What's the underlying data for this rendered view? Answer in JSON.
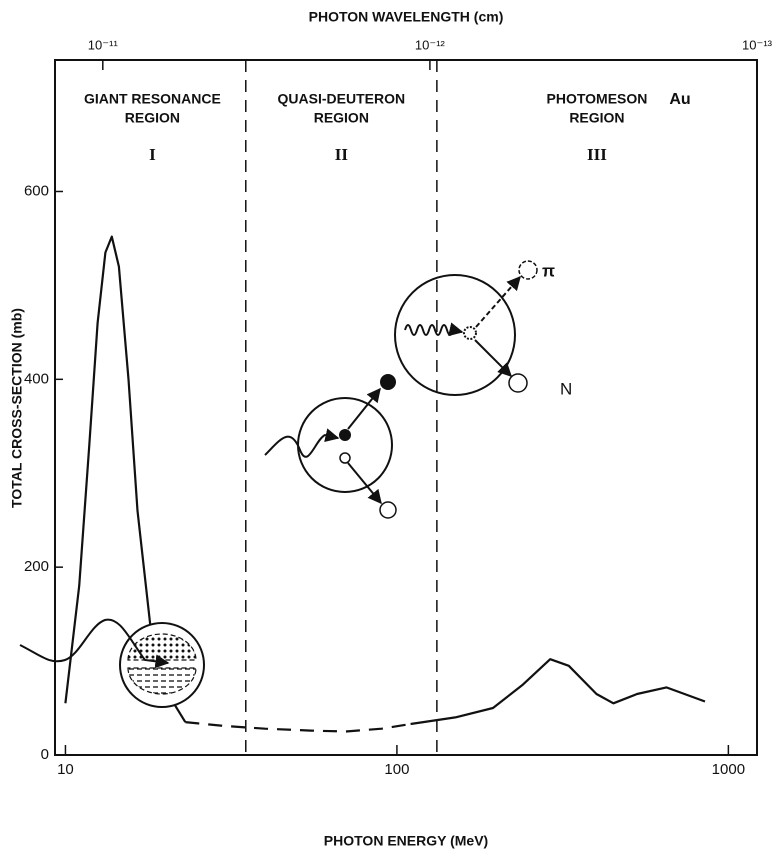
{
  "chart_data": {
    "type": "line",
    "x2label": "PHOTON WAVELENGTH (cm)",
    "xlabel": "PHOTON ENERGY (MeV)",
    "ylabel": "TOTAL CROSS-SECTION (mb)",
    "xscale": "log",
    "xlim": [
      9.3,
      1220
    ],
    "xticks": [
      10,
      100,
      1000
    ],
    "x2lim": [
      1.4e-11,
      1e-13
    ],
    "x2ticks": [
      {
        "value": 1e-11,
        "label": "10⁻¹¹"
      },
      {
        "value": 1e-12,
        "label": "10⁻¹²"
      },
      {
        "value": 1e-13,
        "label": "10⁻¹³"
      }
    ],
    "ylim": [
      0,
      740
    ],
    "yticks": [
      0,
      200,
      400,
      600
    ],
    "region_boundaries": [
      35,
      132
    ],
    "regions": [
      {
        "lines": [
          "GIANT RESONANCE",
          "REGION"
        ],
        "numeral": "I"
      },
      {
        "lines": [
          "QUASI-DEUTERON",
          "REGION"
        ],
        "numeral": "II"
      },
      {
        "lines": [
          "PHOTOMESON",
          "REGION"
        ],
        "numeral": "III"
      }
    ],
    "annotations": {
      "element": "Au",
      "pion": "π",
      "nucleon": "N"
    },
    "series": [
      {
        "color": "#111111",
        "line_style": "solid",
        "x": [
          10,
          11,
          11.8,
          12.5,
          13.2,
          13.8,
          14.5,
          15.5,
          16.5,
          18,
          20,
          23
        ],
        "values": [
          55,
          180,
          330,
          460,
          535,
          552,
          520,
          400,
          260,
          140,
          70,
          35
        ]
      },
      {
        "color": "#111111",
        "line_style": "dashed",
        "x": [
          23,
          30,
          40,
          55,
          70,
          90,
          110
        ],
        "values": [
          35,
          31,
          28,
          26,
          25,
          28,
          33
        ]
      },
      {
        "color": "#111111",
        "line_style": "solid",
        "x": [
          110,
          150,
          195,
          240,
          290,
          330,
          400,
          450,
          530,
          650,
          850
        ],
        "values": [
          33,
          40,
          50,
          75,
          102,
          95,
          65,
          55,
          65,
          72,
          57
        ]
      }
    ]
  }
}
